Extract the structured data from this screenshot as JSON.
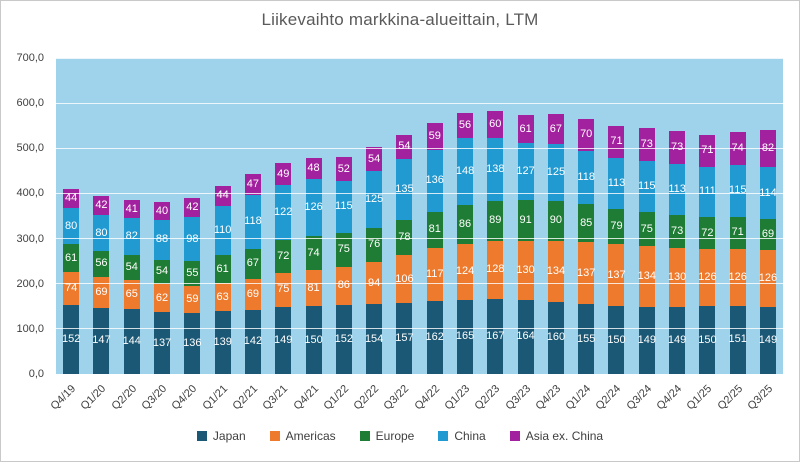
{
  "title": "Liikevaihto markkina-alueittain, LTM",
  "chart_data": {
    "type": "bar",
    "stacked": true,
    "title": "Liikevaihto markkina-alueittain, LTM",
    "categories": [
      "Q4/19",
      "Q1/20",
      "Q2/20",
      "Q3/20",
      "Q4/20",
      "Q1/21",
      "Q2/21",
      "Q3/21",
      "Q4/21",
      "Q1/22",
      "Q2/22",
      "Q3/22",
      "Q4/22",
      "Q1/23",
      "Q2/23",
      "Q3/23",
      "Q4/23",
      "Q1/24",
      "Q2/24",
      "Q3/24",
      "Q4/24",
      "Q1/25",
      "Q2/25",
      "Q3/25"
    ],
    "series": [
      {
        "name": "Japan",
        "color": "#1b5876",
        "values": [
          152,
          147,
          144,
          137,
          136,
          139,
          142,
          149,
          150,
          152,
          154,
          157,
          162,
          165,
          167,
          164,
          160,
          155,
          150,
          149,
          149,
          150,
          151,
          149
        ]
      },
      {
        "name": "Americas",
        "color": "#ed7a2d",
        "values": [
          74,
          69,
          65,
          62,
          59,
          63,
          69,
          75,
          81,
          86,
          94,
          106,
          117,
          124,
          128,
          130,
          134,
          137,
          137,
          134,
          130,
          126,
          126,
          126
        ]
      },
      {
        "name": "Europe",
        "color": "#1e7c34",
        "values": [
          61,
          56,
          54,
          54,
          55,
          61,
          67,
          72,
          74,
          75,
          76,
          78,
          81,
          86,
          89,
          91,
          90,
          85,
          79,
          75,
          73,
          72,
          71,
          69
        ]
      },
      {
        "name": "China",
        "color": "#2199d1",
        "values": [
          80,
          80,
          82,
          88,
          98,
          110,
          118,
          122,
          126,
          115,
          125,
          135,
          136,
          148,
          138,
          127,
          125,
          118,
          113,
          115,
          113,
          111,
          115,
          114
        ]
      },
      {
        "name": "Asia ex. China",
        "color": "#a2219e",
        "values": [
          44,
          42,
          41,
          40,
          42,
          44,
          47,
          49,
          48,
          52,
          54,
          54,
          59,
          56,
          60,
          61,
          67,
          70,
          71,
          73,
          73,
          71,
          74,
          82
        ]
      }
    ],
    "y_axis": {
      "min": 0,
      "max": 700,
      "step": 100,
      "tick_labels_top_down": [
        "700,0",
        "600,0",
        "500,0",
        "400,0",
        "300,0",
        "200,0",
        "100,0",
        "0,0"
      ]
    },
    "value_labels": true,
    "gridlines": true,
    "legend_position": "bottom",
    "plot_bg": "#9fd3ec"
  }
}
